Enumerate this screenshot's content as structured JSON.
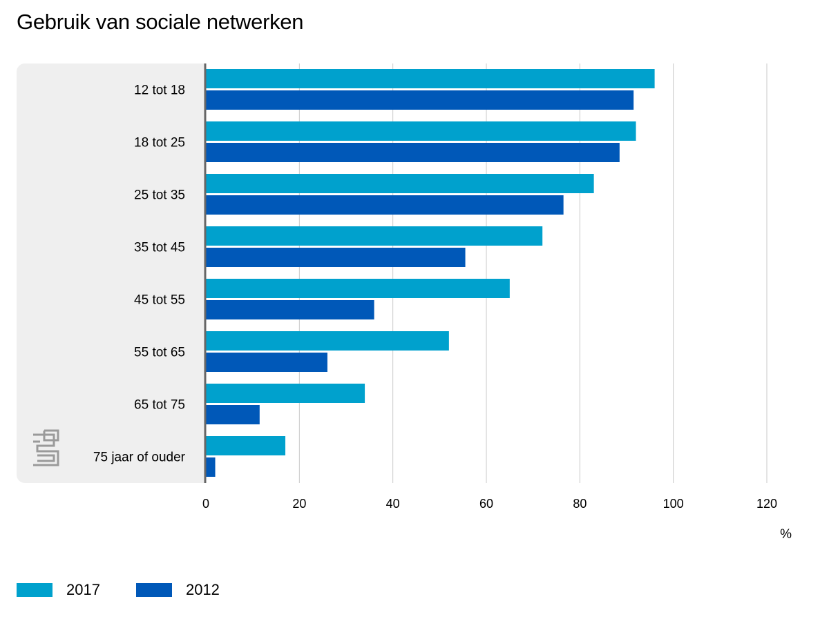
{
  "chart_data": {
    "type": "bar",
    "orientation": "horizontal",
    "title": "Gebruik van sociale netwerken",
    "categories": [
      "12 tot 18",
      "18 tot 25",
      "25 tot 35",
      "35 tot 45",
      "45 tot 55",
      "55 tot 65",
      "65 tot 75",
      "75 jaar of ouder"
    ],
    "series": [
      {
        "name": "2017",
        "color": "#00a1cd",
        "values": [
          96,
          92,
          83,
          72,
          65,
          52,
          34,
          17
        ]
      },
      {
        "name": "2012",
        "color": "#0058b8",
        "values": [
          91.5,
          88.5,
          76.5,
          55.5,
          36,
          26,
          11.5,
          2
        ]
      }
    ],
    "xlim": [
      0,
      120
    ],
    "xticks": [
      0,
      20,
      40,
      60,
      80,
      100,
      120
    ],
    "xunit": "%",
    "grid": true,
    "legend_position": "bottom-left",
    "colors": {
      "panel": "#efefef",
      "grid": "#c8c8c8",
      "axis": "#666666",
      "logo": "#9a9a9a"
    }
  },
  "branding": {
    "logo_icon": "cbs-logo-icon"
  }
}
